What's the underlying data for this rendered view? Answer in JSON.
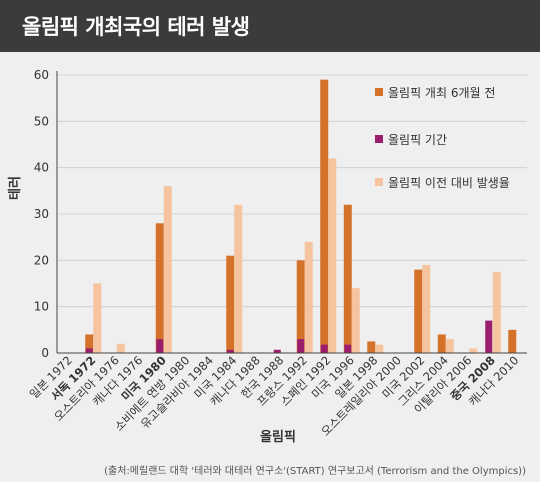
{
  "header": {
    "title": "올림픽 개최국의 테러 발생"
  },
  "colors": {
    "before": "#d4722a",
    "during": "#9b1d6d",
    "prior_avg": "#f5c49f",
    "highlight_label": "#b01c24",
    "grid": "#cccccc",
    "axis": "#444444"
  },
  "chart_data": {
    "type": "bar",
    "xlabel": "올림픽",
    "ylabel": "테러",
    "ylim": [
      0,
      60
    ],
    "yticks": [
      0,
      10,
      20,
      30,
      40,
      50,
      60
    ],
    "grid": true,
    "legend_position": "top-right",
    "categories": [
      "일본 1972",
      "서독 1972",
      "오스트리아 1976",
      "캐나다 1976",
      "미국 1980",
      "소비에트 연방 1980",
      "유고슬라비아 1984",
      "미국 1984",
      "캐나다 1988",
      "한국 1988",
      "프랑스 1992",
      "스페인 1992",
      "미국 1996",
      "일본 1998",
      "오스트레일리아 2000",
      "미국 2002",
      "그리스 2004",
      "이탈리아 2006",
      "중국 2008",
      "캐나다 2010"
    ],
    "highlighted_categories": [
      "서독 1972",
      "미국 1980",
      "중국 2008"
    ],
    "series": [
      {
        "name": "올림픽 개최 6개월 전",
        "values": [
          0,
          4,
          0,
          0,
          28,
          0,
          0,
          21,
          0,
          0,
          20,
          59,
          32,
          2.5,
          0,
          18,
          4,
          0,
          0,
          5
        ]
      },
      {
        "name": "올림픽 기간",
        "values": [
          0,
          1,
          0,
          0,
          3,
          0,
          0,
          0.7,
          0,
          0.7,
          3,
          1.8,
          1.8,
          0,
          0,
          0,
          0,
          0,
          7,
          0
        ]
      },
      {
        "name": "올림픽 이전 대비 발생율",
        "values": [
          0,
          15,
          2,
          0,
          36,
          0,
          0,
          32,
          0,
          0,
          24,
          42,
          14,
          1.8,
          0,
          19,
          3,
          1,
          17.5,
          0
        ]
      }
    ]
  },
  "source": "(출처:메릴랜드 대학 '테러와 대테러 연구소'(START) 연구보고서 (Terrorism and the Olympics))"
}
